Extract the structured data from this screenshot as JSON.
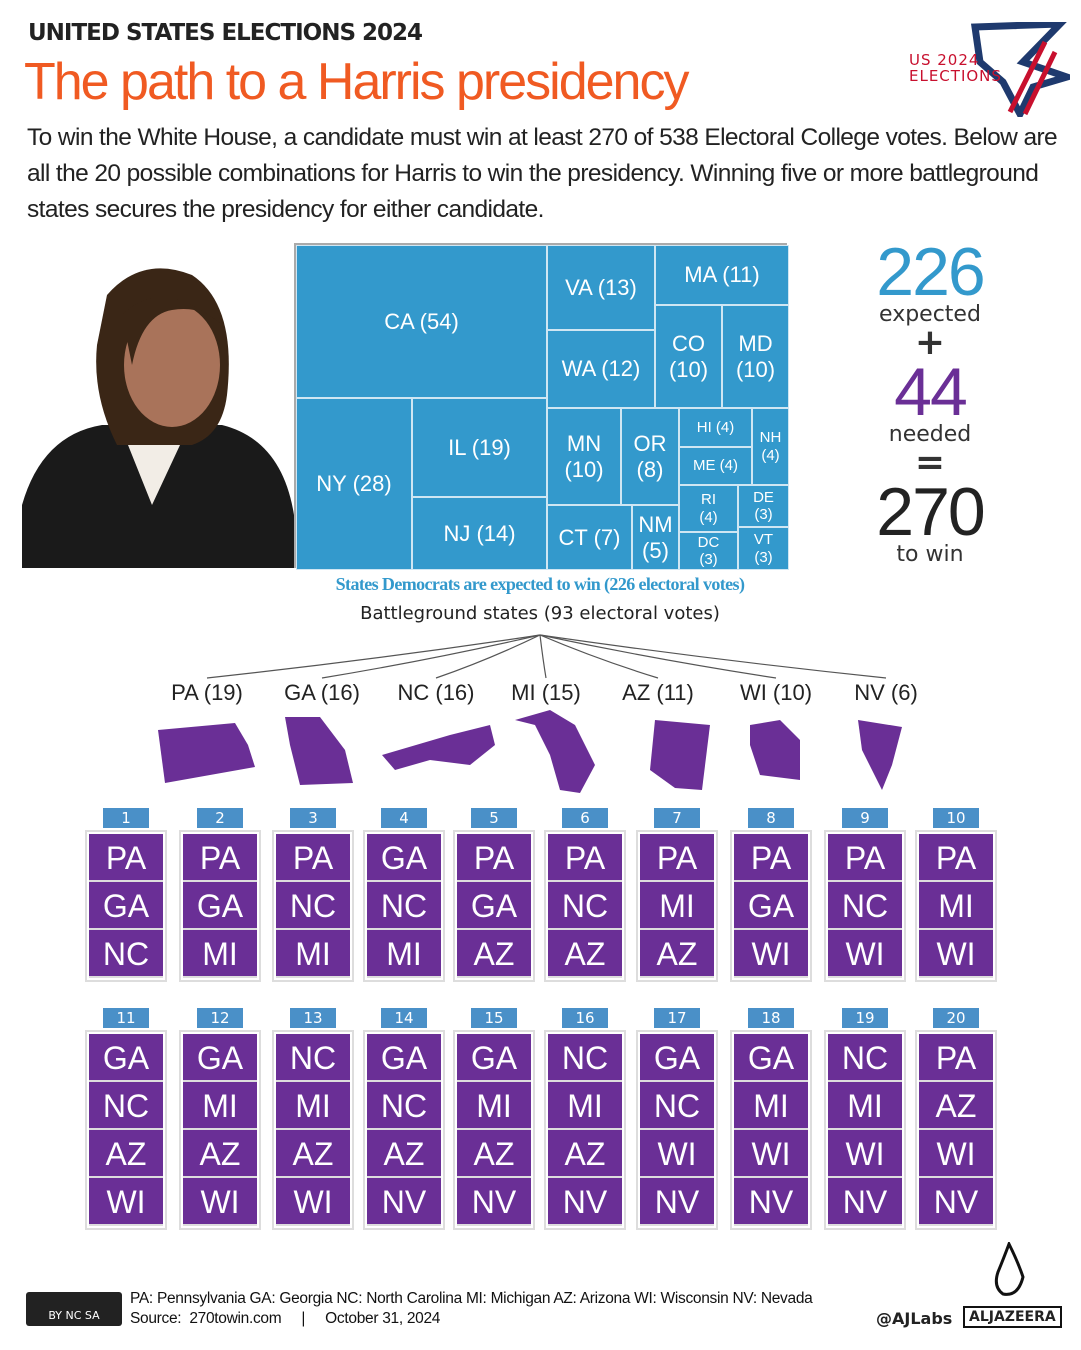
{
  "header": {
    "kicker": "UNITED STATES ELECTIONS 2024",
    "title": "The path to a Harris presidency",
    "intro": "To win the White House, a candidate must win at least 270 of 538 Electoral College votes. Below are all the 20 possible combinations for Harris to win the presidency. Winning five or more battleground states secures the presidency for either candidate.",
    "logo_line1": "US 2024",
    "logo_line2": "ELECTIONS"
  },
  "treemap": [
    {
      "label": "CA (54)",
      "votes": 54
    },
    {
      "label": "NY (28)",
      "votes": 28
    },
    {
      "label": "IL (19)",
      "votes": 19
    },
    {
      "label": "NJ (14)",
      "votes": 14
    },
    {
      "label": "VA (13)",
      "votes": 13
    },
    {
      "label": "MA (11)",
      "votes": 11
    },
    {
      "label": "WA (12)",
      "votes": 12
    },
    {
      "label": "CO (10)",
      "votes": 10
    },
    {
      "label": "MD (10)",
      "votes": 10
    },
    {
      "label": "MN (10)",
      "votes": 10
    },
    {
      "label": "OR (8)",
      "votes": 8
    },
    {
      "label": "HI (4)",
      "votes": 4
    },
    {
      "label": "ME (4)",
      "votes": 4
    },
    {
      "label": "NH (4)",
      "votes": 4
    },
    {
      "label": "CT (7)",
      "votes": 7
    },
    {
      "label": "NM (5)",
      "votes": 5
    },
    {
      "label": "RI (4)",
      "votes": 4
    },
    {
      "label": "DE (3)",
      "votes": 3
    },
    {
      "label": "DC (3)",
      "votes": 3
    },
    {
      "label": "VT (3)",
      "votes": 3
    }
  ],
  "totals": {
    "expected": "226",
    "expected_label": "expected",
    "plus": "+",
    "needed": "44",
    "needed_label": "needed",
    "equals": "=",
    "win": "270",
    "win_label": "to win"
  },
  "captions": {
    "expected": "States Democrats are expected to win (226 electoral votes)",
    "battleground": "Battleground states (93 electoral votes)"
  },
  "battleground": [
    "PA (19)",
    "GA (16)",
    "NC (16)",
    "MI (15)",
    "AZ (11)",
    "WI (10)",
    "NV (6)"
  ],
  "combinations": [
    {
      "n": "1",
      "states": [
        "PA",
        "GA",
        "NC"
      ]
    },
    {
      "n": "2",
      "states": [
        "PA",
        "GA",
        "MI"
      ]
    },
    {
      "n": "3",
      "states": [
        "PA",
        "NC",
        "MI"
      ]
    },
    {
      "n": "4",
      "states": [
        "GA",
        "NC",
        "MI"
      ]
    },
    {
      "n": "5",
      "states": [
        "PA",
        "GA",
        "AZ"
      ]
    },
    {
      "n": "6",
      "states": [
        "PA",
        "NC",
        "AZ"
      ]
    },
    {
      "n": "7",
      "states": [
        "PA",
        "MI",
        "AZ"
      ]
    },
    {
      "n": "8",
      "states": [
        "PA",
        "GA",
        "WI"
      ]
    },
    {
      "n": "9",
      "states": [
        "PA",
        "NC",
        "WI"
      ]
    },
    {
      "n": "10",
      "states": [
        "PA",
        "MI",
        "WI"
      ]
    },
    {
      "n": "11",
      "states": [
        "GA",
        "NC",
        "AZ",
        "WI"
      ]
    },
    {
      "n": "12",
      "states": [
        "GA",
        "MI",
        "AZ",
        "WI"
      ]
    },
    {
      "n": "13",
      "states": [
        "NC",
        "MI",
        "AZ",
        "WI"
      ]
    },
    {
      "n": "14",
      "states": [
        "GA",
        "NC",
        "AZ",
        "NV"
      ]
    },
    {
      "n": "15",
      "states": [
        "GA",
        "MI",
        "AZ",
        "NV"
      ]
    },
    {
      "n": "16",
      "states": [
        "NC",
        "MI",
        "AZ",
        "NV"
      ]
    },
    {
      "n": "17",
      "states": [
        "GA",
        "NC",
        "WI",
        "NV"
      ]
    },
    {
      "n": "18",
      "states": [
        "GA",
        "MI",
        "WI",
        "NV"
      ]
    },
    {
      "n": "19",
      "states": [
        "NC",
        "MI",
        "WI",
        "NV"
      ]
    },
    {
      "n": "20",
      "states": [
        "PA",
        "AZ",
        "WI",
        "NV"
      ]
    }
  ],
  "footer": {
    "legend": "PA: Pennsylvania GA: Georgia NC: North Carolina MI: Michigan AZ: Arizona WI: Wisconsin NV: Nevada",
    "source": "Source:  270towin.com     |     October 31, 2024",
    "handle": "@AJLabs",
    "brand": "ALJAZEERA",
    "license": "BY NC SA"
  },
  "colors": {
    "accent": "#f05a22",
    "democrat": "#3399cc",
    "battleground": "#6a2f96",
    "number_tab": "#4a90c8"
  }
}
